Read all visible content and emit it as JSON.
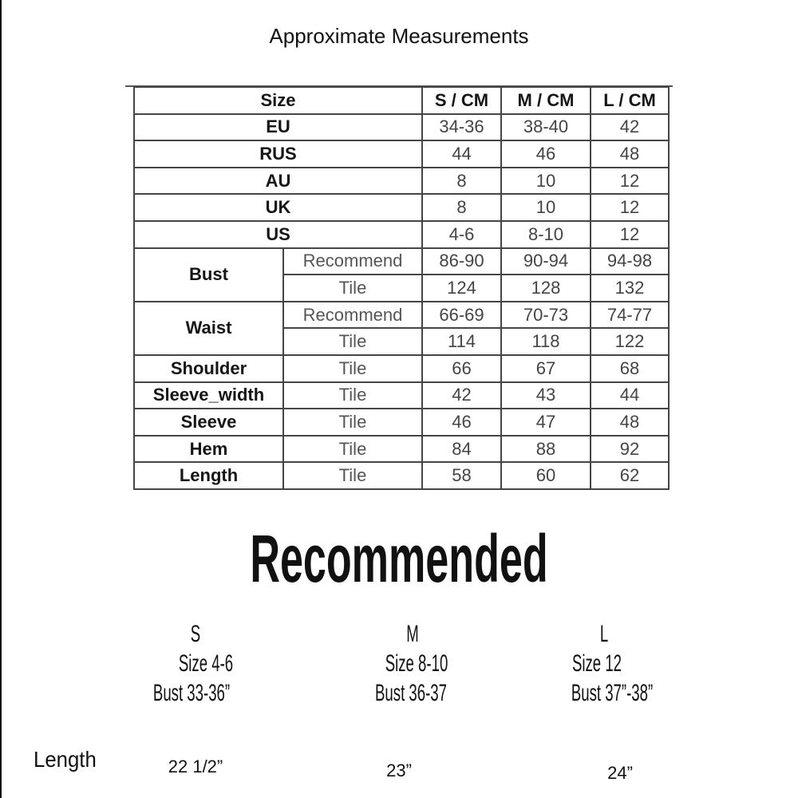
{
  "title": "Approximate Measurements",
  "table": {
    "header": {
      "label": "Size",
      "columns": [
        "S / CM",
        "M / CM",
        "L / CM"
      ]
    },
    "size_rows": [
      {
        "label": "EU",
        "values": [
          "34-36",
          "38-40",
          "42"
        ]
      },
      {
        "label": "RUS",
        "values": [
          "44",
          "46",
          "48"
        ]
      },
      {
        "label": "AU",
        "values": [
          "8",
          "10",
          "12"
        ]
      },
      {
        "label": "UK",
        "values": [
          "8",
          "10",
          "12"
        ]
      },
      {
        "label": "US",
        "values": [
          "4-6",
          "8-10",
          "12"
        ]
      }
    ],
    "measure_groups": [
      {
        "label": "Bust",
        "rows": [
          {
            "sub": "Recommend",
            "values": [
              "86-90",
              "90-94",
              "94-98"
            ]
          },
          {
            "sub": "Tile",
            "values": [
              "124",
              "128",
              "132"
            ]
          }
        ]
      },
      {
        "label": "Waist",
        "rows": [
          {
            "sub": "Recommend",
            "values": [
              "66-69",
              "70-73",
              "74-77"
            ]
          },
          {
            "sub": "Tile",
            "values": [
              "114",
              "118",
              "122"
            ]
          }
        ]
      },
      {
        "label": "Shoulder",
        "rows": [
          {
            "sub": "Tile",
            "values": [
              "66",
              "67",
              "68"
            ]
          }
        ]
      },
      {
        "label": "Sleeve_width",
        "rows": [
          {
            "sub": "Tile",
            "values": [
              "42",
              "43",
              "44"
            ]
          }
        ]
      },
      {
        "label": "Sleeve",
        "rows": [
          {
            "sub": "Tile",
            "values": [
              "46",
              "47",
              "48"
            ]
          }
        ]
      },
      {
        "label": "Hem",
        "rows": [
          {
            "sub": "Tile",
            "values": [
              "84",
              "88",
              "92"
            ]
          }
        ]
      },
      {
        "label": "Length",
        "rows": [
          {
            "sub": "Tile",
            "values": [
              "58",
              "60",
              "62"
            ]
          }
        ]
      }
    ]
  },
  "recommended": {
    "heading": "Recommended",
    "sizes": [
      {
        "letter": "S",
        "size": "Size 4-6",
        "bust": "Bust 33-36”",
        "length": "22 1/2”"
      },
      {
        "letter": "M",
        "size": "Size 8-10",
        "bust": "Bust 36-37",
        "length": "23”"
      },
      {
        "letter": "L",
        "size": "Size 12",
        "bust": "Bust 37”-38”",
        "length": "24”"
      }
    ],
    "length_label": "Length"
  }
}
